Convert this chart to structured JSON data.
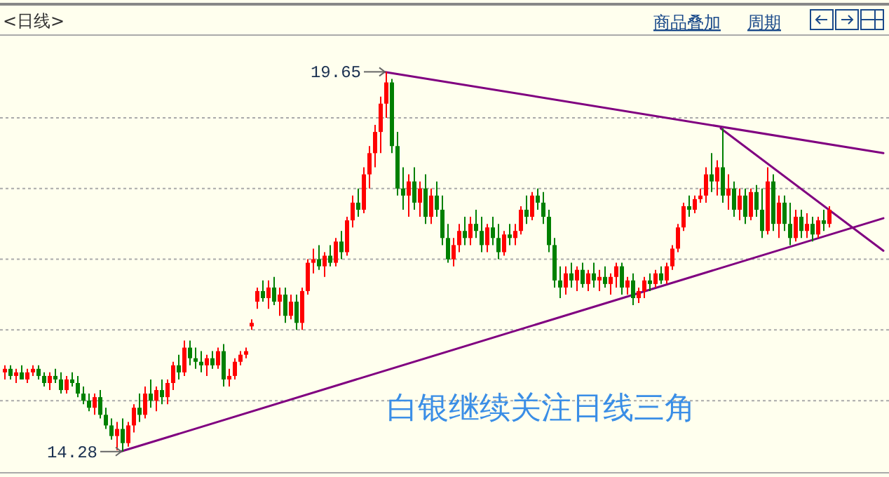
{
  "chart_data": {
    "type": "candlestick",
    "title": "<日线>",
    "annotations": [
      "商品叠加",
      "周期",
      "19.65",
      "14.28",
      "白银继续关注日线三角"
    ],
    "ylim": [
      14.0,
      20.15
    ],
    "yticks": [
      {
        "value": 15,
        "label": null
      },
      {
        "value": 16,
        "label": null
      },
      {
        "value": 17,
        "label": null
      },
      {
        "value": 18,
        "label": null
      },
      {
        "value": 19,
        "label": null
      }
    ],
    "grid": "y",
    "categories": [
      null,
      null,
      null,
      null,
      null,
      null,
      null,
      null,
      null,
      null,
      null,
      null,
      null,
      null,
      null,
      null,
      null,
      null,
      null,
      null,
      null,
      null,
      null,
      null,
      null,
      null,
      null,
      null,
      null,
      null,
      null,
      null,
      null,
      null,
      null,
      null,
      null,
      null,
      null,
      null,
      null,
      null,
      null,
      null,
      null,
      null,
      null,
      null,
      null,
      null,
      null,
      null,
      null,
      null,
      null,
      null,
      null,
      null,
      null,
      null,
      null,
      null,
      null,
      null,
      null,
      null,
      null,
      null,
      null,
      null,
      null,
      null,
      null,
      null,
      null,
      null,
      null,
      null,
      null,
      null,
      null,
      null,
      null,
      null,
      null,
      null,
      null,
      null,
      null,
      null,
      null,
      null,
      null,
      null,
      null,
      null,
      null,
      null,
      null,
      null,
      null,
      null,
      null,
      null,
      null,
      null,
      null,
      null,
      null,
      null,
      null,
      null,
      null,
      null,
      null,
      null,
      null,
      null,
      null,
      null,
      null,
      null,
      null,
      null,
      null,
      null,
      null,
      null,
      null,
      null,
      null,
      null,
      null,
      null,
      null,
      null,
      null,
      null,
      null,
      null,
      null,
      null,
      null,
      null,
      null,
      null,
      null,
      null,
      null,
      null,
      null,
      null,
      null,
      null,
      null,
      null,
      null,
      null
    ],
    "ohlc": [
      [
        15.4,
        15.5,
        15.3,
        15.45
      ],
      [
        15.45,
        15.5,
        15.3,
        15.35
      ],
      [
        15.35,
        15.45,
        15.25,
        15.4
      ],
      [
        15.4,
        15.5,
        15.3,
        15.3
      ],
      [
        15.3,
        15.45,
        15.25,
        15.4
      ],
      [
        15.4,
        15.5,
        15.35,
        15.45
      ],
      [
        15.45,
        15.5,
        15.3,
        15.35
      ],
      [
        15.35,
        15.4,
        15.2,
        15.25
      ],
      [
        15.25,
        15.4,
        15.15,
        15.35
      ],
      [
        15.35,
        15.45,
        15.25,
        15.3
      ],
      [
        15.3,
        15.4,
        15.1,
        15.15
      ],
      [
        15.15,
        15.35,
        15.1,
        15.3
      ],
      [
        15.3,
        15.4,
        15.2,
        15.25
      ],
      [
        15.25,
        15.35,
        15.05,
        15.1
      ],
      [
        15.1,
        15.2,
        14.95,
        15.0
      ],
      [
        15.0,
        15.1,
        14.85,
        14.9
      ],
      [
        14.9,
        15.1,
        14.8,
        15.05
      ],
      [
        15.05,
        15.15,
        14.75,
        14.8
      ],
      [
        14.8,
        14.9,
        14.6,
        14.65
      ],
      [
        14.65,
        14.75,
        14.45,
        14.5
      ],
      [
        14.5,
        14.7,
        14.3,
        14.6
      ],
      [
        14.6,
        14.75,
        14.28,
        14.4
      ],
      [
        14.4,
        14.7,
        14.35,
        14.65
      ],
      [
        14.65,
        14.95,
        14.55,
        14.9
      ],
      [
        14.9,
        15.1,
        14.7,
        14.8
      ],
      [
        14.8,
        15.2,
        14.75,
        15.1
      ],
      [
        15.1,
        15.3,
        14.9,
        15.0
      ],
      [
        15.0,
        15.2,
        14.85,
        15.15
      ],
      [
        15.15,
        15.3,
        14.95,
        15.05
      ],
      [
        15.05,
        15.3,
        14.95,
        15.25
      ],
      [
        15.25,
        15.55,
        15.15,
        15.5
      ],
      [
        15.5,
        15.65,
        15.3,
        15.4
      ],
      [
        15.4,
        15.85,
        15.35,
        15.75
      ],
      [
        15.75,
        15.85,
        15.5,
        15.6
      ],
      [
        15.6,
        15.75,
        15.45,
        15.55
      ],
      [
        15.55,
        15.7,
        15.4,
        15.5
      ],
      [
        15.5,
        15.65,
        15.35,
        15.6
      ],
      [
        15.6,
        15.7,
        15.45,
        15.5
      ],
      [
        15.5,
        15.75,
        15.45,
        15.7
      ],
      [
        15.7,
        15.8,
        15.2,
        15.3
      ],
      [
        15.3,
        15.45,
        15.2,
        15.35
      ],
      [
        15.35,
        15.6,
        15.3,
        15.55
      ],
      [
        15.55,
        15.7,
        15.5,
        15.65
      ],
      [
        15.65,
        15.75,
        15.6,
        15.7
      ],
      [
        16.05,
        16.15,
        16.0,
        16.1
      ],
      [
        16.4,
        16.6,
        16.3,
        16.55
      ],
      [
        16.55,
        16.7,
        16.4,
        16.45
      ],
      [
        16.45,
        16.7,
        16.3,
        16.6
      ],
      [
        16.6,
        16.75,
        16.35,
        16.4
      ],
      [
        16.4,
        16.6,
        16.2,
        16.5
      ],
      [
        16.5,
        16.6,
        16.1,
        16.2
      ],
      [
        16.2,
        16.5,
        16.15,
        16.4
      ],
      [
        16.4,
        16.5,
        16.0,
        16.1
      ],
      [
        16.1,
        16.6,
        16.0,
        16.55
      ],
      [
        16.55,
        17.0,
        16.5,
        16.95
      ],
      [
        16.95,
        17.15,
        16.8,
        17.0
      ],
      [
        17.0,
        17.2,
        16.85,
        16.9
      ],
      [
        16.9,
        17.1,
        16.75,
        17.05
      ],
      [
        17.05,
        17.2,
        16.9,
        16.95
      ],
      [
        16.95,
        17.3,
        16.9,
        17.25
      ],
      [
        17.25,
        17.4,
        17.0,
        17.1
      ],
      [
        17.1,
        17.6,
        17.05,
        17.55
      ],
      [
        17.55,
        17.9,
        17.45,
        17.8
      ],
      [
        17.8,
        18.0,
        17.6,
        17.7
      ],
      [
        17.7,
        18.3,
        17.65,
        18.2
      ],
      [
        18.2,
        18.6,
        18.0,
        18.5
      ],
      [
        18.5,
        18.9,
        18.3,
        18.8
      ],
      [
        18.8,
        19.3,
        18.5,
        19.2
      ],
      [
        19.2,
        19.65,
        19.0,
        19.5
      ],
      [
        19.5,
        19.55,
        18.5,
        18.6
      ],
      [
        18.6,
        18.8,
        17.9,
        18.0
      ],
      [
        18.0,
        18.3,
        17.7,
        17.9
      ],
      [
        17.9,
        18.2,
        17.6,
        18.1
      ],
      [
        18.1,
        18.3,
        17.7,
        17.8
      ],
      [
        17.8,
        18.1,
        17.6,
        18.0
      ],
      [
        18.0,
        18.2,
        17.5,
        17.6
      ],
      [
        17.6,
        18.0,
        17.5,
        17.9
      ],
      [
        17.9,
        18.1,
        17.6,
        17.7
      ],
      [
        17.7,
        17.9,
        17.2,
        17.3
      ],
      [
        17.3,
        17.5,
        16.95,
        17.0
      ],
      [
        17.0,
        17.3,
        16.9,
        17.2
      ],
      [
        17.2,
        17.5,
        17.1,
        17.4
      ],
      [
        17.4,
        17.6,
        17.2,
        17.3
      ],
      [
        17.3,
        17.6,
        17.2,
        17.5
      ],
      [
        17.5,
        17.7,
        17.3,
        17.4
      ],
      [
        17.4,
        17.6,
        17.1,
        17.2
      ],
      [
        17.2,
        17.5,
        17.1,
        17.45
      ],
      [
        17.45,
        17.6,
        17.2,
        17.3
      ],
      [
        17.3,
        17.5,
        17.0,
        17.1
      ],
      [
        17.1,
        17.4,
        17.05,
        17.35
      ],
      [
        17.35,
        17.5,
        17.2,
        17.3
      ],
      [
        17.3,
        17.5,
        17.2,
        17.4
      ],
      [
        17.4,
        17.75,
        17.35,
        17.7
      ],
      [
        17.7,
        17.9,
        17.5,
        17.6
      ],
      [
        17.6,
        17.95,
        17.55,
        17.9
      ],
      [
        17.9,
        18.0,
        17.7,
        17.8
      ],
      [
        17.8,
        17.95,
        17.5,
        17.6
      ],
      [
        17.6,
        17.7,
        17.1,
        17.2
      ],
      [
        17.2,
        17.3,
        16.6,
        16.7
      ],
      [
        16.7,
        16.9,
        16.45,
        16.6
      ],
      [
        16.6,
        16.9,
        16.5,
        16.8
      ],
      [
        16.8,
        16.95,
        16.6,
        16.7
      ],
      [
        16.7,
        16.9,
        16.55,
        16.85
      ],
      [
        16.85,
        16.95,
        16.6,
        16.65
      ],
      [
        16.65,
        16.85,
        16.55,
        16.8
      ],
      [
        16.8,
        16.95,
        16.6,
        16.7
      ],
      [
        16.7,
        16.85,
        16.55,
        16.75
      ],
      [
        16.75,
        16.9,
        16.6,
        16.65
      ],
      [
        16.65,
        16.8,
        16.5,
        16.75
      ],
      [
        16.75,
        16.95,
        16.6,
        16.9
      ],
      [
        16.9,
        16.95,
        16.5,
        16.6
      ],
      [
        16.6,
        16.75,
        16.5,
        16.7
      ],
      [
        16.7,
        16.8,
        16.35,
        16.45
      ],
      [
        16.45,
        16.6,
        16.38,
        16.55
      ],
      [
        16.55,
        16.75,
        16.45,
        16.7
      ],
      [
        16.7,
        16.8,
        16.55,
        16.65
      ],
      [
        16.65,
        16.85,
        16.6,
        16.8
      ],
      [
        16.8,
        16.9,
        16.65,
        16.7
      ],
      [
        16.7,
        16.95,
        16.65,
        16.9
      ],
      [
        16.9,
        17.2,
        16.85,
        17.15
      ],
      [
        17.15,
        17.5,
        17.1,
        17.45
      ],
      [
        17.45,
        17.8,
        17.4,
        17.75
      ],
      [
        17.75,
        17.9,
        17.6,
        17.7
      ],
      [
        17.7,
        17.9,
        17.65,
        17.85
      ],
      [
        17.85,
        18.0,
        17.8,
        17.9
      ],
      [
        17.9,
        18.3,
        17.8,
        18.2
      ],
      [
        18.2,
        18.5,
        17.95,
        18.1
      ],
      [
        18.1,
        18.4,
        17.9,
        18.3
      ],
      [
        18.3,
        18.85,
        17.8,
        17.9
      ],
      [
        17.9,
        18.2,
        17.7,
        18.0
      ],
      [
        18.0,
        18.1,
        17.6,
        17.7
      ],
      [
        17.7,
        18.0,
        17.55,
        17.9
      ],
      [
        17.9,
        18.0,
        17.5,
        17.6
      ],
      [
        17.6,
        18.0,
        17.55,
        17.95
      ],
      [
        17.95,
        18.05,
        17.6,
        17.7
      ],
      [
        17.7,
        18.0,
        17.3,
        17.4
      ],
      [
        17.4,
        18.3,
        17.35,
        18.1
      ],
      [
        18.1,
        18.2,
        17.4,
        17.5
      ],
      [
        17.5,
        17.9,
        17.3,
        17.8
      ],
      [
        17.8,
        17.9,
        17.4,
        17.5
      ],
      [
        17.5,
        17.8,
        17.2,
        17.3
      ],
      [
        17.3,
        17.7,
        17.25,
        17.6
      ],
      [
        17.6,
        17.7,
        17.3,
        17.4
      ],
      [
        17.4,
        17.65,
        17.3,
        17.5
      ],
      [
        17.5,
        17.6,
        17.25,
        17.35
      ],
      [
        17.35,
        17.6,
        17.3,
        17.55
      ],
      [
        17.55,
        17.7,
        17.4,
        17.5
      ],
      [
        17.5,
        17.75,
        17.45,
        17.7
      ],
      null,
      null,
      null,
      null,
      null,
      null,
      null,
      null,
      null,
      null
    ],
    "series": [
      {
        "type": "line",
        "color": "#800080",
        "values": [
          null,
          null,
          null,
          null,
          null,
          null,
          null,
          null,
          null,
          null,
          null,
          null,
          null,
          null,
          null,
          null,
          null,
          null,
          null,
          null,
          null,
          null,
          null,
          null,
          null,
          null,
          null,
          null,
          null,
          null,
          null,
          null,
          null,
          null,
          null,
          null,
          null,
          null,
          null,
          null,
          null,
          null,
          null,
          null,
          null,
          null,
          null,
          null,
          null,
          null,
          null,
          null,
          null,
          null,
          null,
          null,
          null,
          null,
          null,
          null,
          null,
          null,
          null,
          null,
          null,
          null,
          null,
          null,
          19.65,
          null,
          null,
          null,
          null,
          null,
          null,
          null,
          null,
          null,
          null,
          null,
          null,
          null,
          null,
          null,
          null,
          null,
          null,
          null,
          null,
          null,
          null,
          null,
          null,
          null,
          null,
          null,
          null,
          null,
          null,
          null,
          null,
          null,
          null,
          null,
          null,
          null,
          null,
          null,
          null,
          null,
          null,
          null,
          null,
          null,
          null,
          null,
          null,
          null,
          null,
          null,
          null,
          null,
          null,
          null,
          null,
          null,
          null,
          null,
          null,
          null,
          null,
          null,
          null,
          null,
          null,
          null,
          null,
          null,
          null,
          null,
          null,
          null,
          null,
          null,
          null,
          null,
          null,
          null,
          null,
          null,
          null,
          null,
          null,
          null,
          null,
          null,
          null,
          18.5
        ]
      },
      {
        "type": "line",
        "color": "#800080",
        "values": [
          null,
          null,
          null,
          null,
          null,
          null,
          null,
          null,
          null,
          null,
          null,
          null,
          null,
          null,
          null,
          null,
          null,
          null,
          null,
          null,
          null,
          null,
          null,
          null,
          null,
          null,
          null,
          null,
          null,
          null,
          null,
          null,
          null,
          null,
          null,
          null,
          null,
          null,
          null,
          null,
          null,
          null,
          null,
          null,
          null,
          null,
          null,
          null,
          null,
          null,
          null,
          null,
          null,
          null,
          null,
          null,
          null,
          null,
          null,
          null,
          null,
          null,
          null,
          null,
          null,
          null,
          null,
          null,
          null,
          null,
          null,
          null,
          null,
          null,
          null,
          null,
          null,
          null,
          null,
          null,
          null,
          null,
          null,
          null,
          null,
          null,
          null,
          null,
          null,
          null,
          null,
          null,
          null,
          null,
          null,
          null,
          null,
          null,
          null,
          null,
          null,
          null,
          null,
          null,
          null,
          null,
          null,
          null,
          null,
          null,
          null,
          null,
          null,
          null,
          null,
          null,
          null,
          null,
          null,
          null,
          null,
          null,
          null,
          null,
          null,
          null,
          null,
          null,
          18.85,
          null,
          null,
          null,
          null,
          null,
          null,
          null,
          null,
          null,
          null,
          null,
          null,
          null,
          null,
          null,
          null,
          null,
          null,
          null,
          null,
          null,
          null,
          null,
          null,
          null,
          null,
          null,
          null,
          17.12
        ]
      },
      {
        "type": "line",
        "color": "#800080",
        "values": [
          null,
          null,
          null,
          null,
          null,
          null,
          null,
          null,
          null,
          null,
          null,
          null,
          null,
          null,
          null,
          null,
          null,
          null,
          null,
          null,
          null,
          14.28,
          null,
          null,
          null,
          null,
          null,
          null,
          null,
          null,
          null,
          null,
          null,
          null,
          null,
          null,
          null,
          null,
          null,
          null,
          null,
          null,
          null,
          null,
          null,
          null,
          null,
          null,
          null,
          null,
          null,
          null,
          null,
          null,
          null,
          null,
          null,
          null,
          null,
          null,
          null,
          null,
          null,
          null,
          null,
          null,
          null,
          null,
          null,
          null,
          null,
          null,
          null,
          null,
          null,
          null,
          null,
          null,
          null,
          null,
          null,
          null,
          null,
          null,
          null,
          null,
          null,
          null,
          null,
          null,
          null,
          null,
          null,
          null,
          null,
          null,
          null,
          null,
          null,
          null,
          null,
          null,
          null,
          null,
          null,
          null,
          null,
          null,
          null,
          null,
          null,
          null,
          null,
          null,
          null,
          null,
          null,
          null,
          null,
          null,
          null,
          null,
          null,
          null,
          null,
          null,
          null,
          null,
          null,
          null,
          null,
          null,
          null,
          null,
          null,
          null,
          null,
          null,
          null,
          null,
          null,
          null,
          null,
          null,
          null,
          null,
          null,
          null,
          null,
          null,
          null,
          null,
          null,
          null,
          null,
          null,
          null,
          17.58
        ]
      }
    ]
  }
}
